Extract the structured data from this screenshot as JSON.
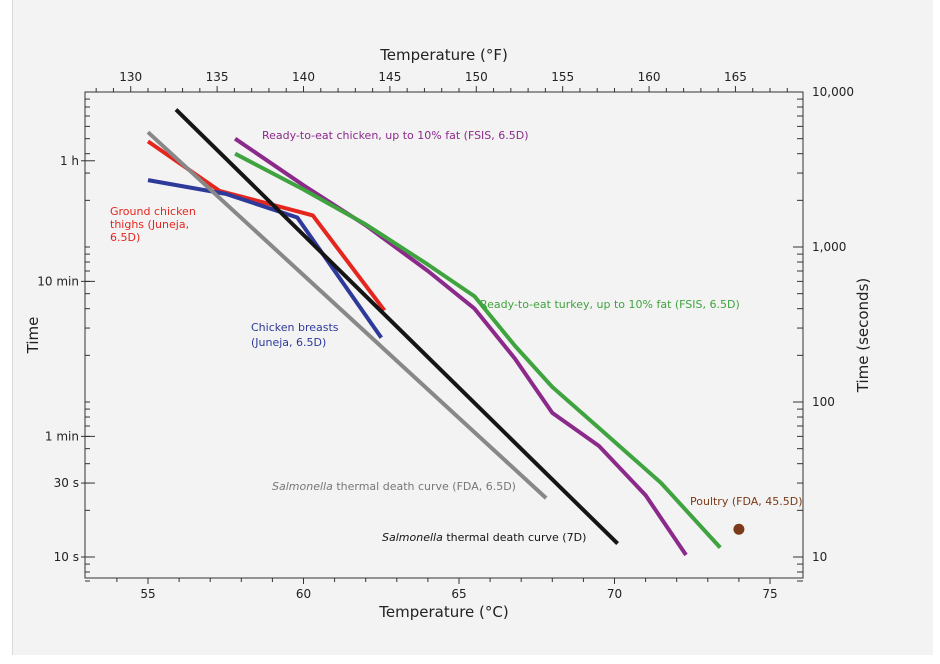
{
  "chart_data": {
    "type": "line",
    "title": "",
    "axes": {
      "x_bottom": {
        "label": "Temperature (°C)",
        "range": [
          53,
          76
        ],
        "ticks": [
          55,
          60,
          65,
          70,
          75
        ]
      },
      "x_top": {
        "label": "Temperature (°F)",
        "ticks": [
          130,
          135,
          140,
          145,
          150,
          155,
          160,
          165
        ]
      },
      "y_left": {
        "label": "Time",
        "scale": "log",
        "ticks": [
          {
            "label": "10 s",
            "seconds": 10
          },
          {
            "label": "30 s",
            "seconds": 30
          },
          {
            "label": "1 min",
            "seconds": 60
          },
          {
            "label": "10 min",
            "seconds": 600
          },
          {
            "label": "1 h",
            "seconds": 3600
          }
        ]
      },
      "y_right": {
        "label": "Time (seconds)",
        "scale": "log",
        "range": [
          7,
          10000
        ],
        "ticks": [
          {
            "label": "10",
            "seconds": 10
          },
          {
            "label": "100",
            "seconds": 100
          },
          {
            "label": "1,000",
            "seconds": 1000
          },
          {
            "label": "10,000",
            "seconds": 10000
          }
        ]
      }
    },
    "series": [
      {
        "color": "#8b2a8b",
        "points": [
          [
            57.8,
            5000
          ],
          [
            60.0,
            2500
          ],
          [
            62.0,
            1380
          ],
          [
            64.0,
            700
          ],
          [
            65.5,
            400
          ],
          [
            66.8,
            190
          ],
          [
            68.0,
            85
          ],
          [
            69.5,
            52
          ],
          [
            71.0,
            25
          ],
          [
            72.3,
            10.3
          ]
        ]
      },
      {
        "color": "#3fa33f",
        "points": [
          [
            57.8,
            4000
          ],
          [
            60.0,
            2350
          ],
          [
            62.0,
            1400
          ],
          [
            64.0,
            770
          ],
          [
            65.5,
            480
          ],
          [
            66.8,
            230
          ],
          [
            68.0,
            125
          ],
          [
            69.5,
            68
          ],
          [
            71.5,
            30
          ],
          [
            73.4,
            11.5
          ]
        ]
      },
      {
        "color": "#e5261f",
        "points": [
          [
            55.0,
            4800
          ],
          [
            57.3,
            2300
          ],
          [
            59.8,
            1700
          ],
          [
            60.3,
            1600
          ],
          [
            62.6,
            390
          ]
        ]
      },
      {
        "color": "#2e3a9a",
        "points": [
          [
            55.0,
            2700
          ],
          [
            57.5,
            2200
          ],
          [
            59.8,
            1550
          ],
          [
            62.5,
            260
          ]
        ]
      },
      {
        "color": "#888888",
        "points": [
          [
            55.0,
            5500
          ],
          [
            67.8,
            24
          ]
        ]
      },
      {
        "color": "#151515",
        "points": [
          [
            55.9,
            7700
          ],
          [
            70.1,
            12.2
          ]
        ]
      }
    ],
    "points": [
      {
        "color": "#7b3a1a",
        "x": 74.0,
        "y": 15.1
      }
    ],
    "annotations": [
      {
        "color": "#8b2a8b",
        "lines": [
          "Ready-to-eat chicken, up to 10% fat (FSIS, 6.5D)"
        ]
      },
      {
        "color": "#3fa33f",
        "lines": [
          "Ready-to-eat turkey, up to 10% fat (FSIS, 6.5D)"
        ]
      },
      {
        "color": "#e5261f",
        "lines": [
          "Ground chicken",
          "thighs (Juneja,",
          "6.5D)"
        ]
      },
      {
        "color": "#2e3a9a",
        "lines": [
          "Chicken breasts",
          "(Juneja, 6.5D)"
        ]
      },
      {
        "color": "#777777",
        "lines": [
          "Salmonella thermal death curve (FDA, 6.5D)"
        ],
        "italic_prefix": "Salmonella"
      },
      {
        "color": "#151515",
        "lines": [
          "Salmonella thermal death curve (7D)"
        ],
        "italic_prefix": "Salmonella"
      },
      {
        "color": "#7b3a1a",
        "lines": [
          "Poultry (FDA, 45.5D)"
        ]
      }
    ]
  }
}
